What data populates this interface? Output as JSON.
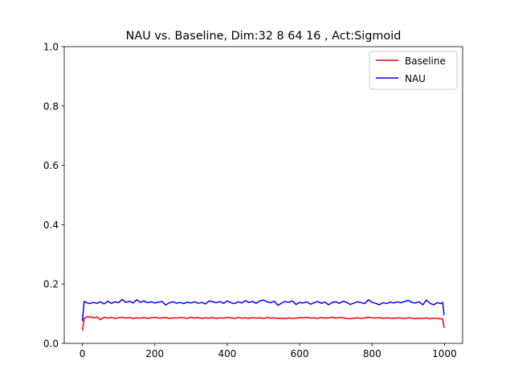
{
  "chart_data": {
    "type": "line",
    "title": "NAU vs. Baseline, Dim:32 8 64 16 , Act:Sigmoid",
    "xlabel": "",
    "ylabel": "",
    "xlim": [
      -50,
      1050
    ],
    "ylim": [
      0.0,
      1.0
    ],
    "xticks": [
      0,
      200,
      400,
      600,
      800,
      1000
    ],
    "xtick_labels": [
      "0",
      "200",
      "400",
      "600",
      "800",
      "1000"
    ],
    "yticks": [
      0.0,
      0.2,
      0.4,
      0.6,
      0.8,
      1.0
    ],
    "ytick_labels": [
      "0.0",
      "0.2",
      "0.4",
      "0.6",
      "0.8",
      "1.0"
    ],
    "grid": false,
    "legend_position": "top-right",
    "x": [
      0,
      5,
      10,
      20,
      30,
      40,
      50,
      60,
      70,
      80,
      90,
      100,
      110,
      120,
      130,
      140,
      150,
      160,
      170,
      180,
      190,
      200,
      210,
      220,
      230,
      240,
      250,
      260,
      270,
      280,
      290,
      300,
      310,
      320,
      330,
      340,
      350,
      360,
      370,
      380,
      390,
      400,
      410,
      420,
      430,
      440,
      450,
      460,
      470,
      480,
      490,
      500,
      510,
      520,
      530,
      540,
      550,
      560,
      570,
      580,
      590,
      600,
      610,
      620,
      630,
      640,
      650,
      660,
      670,
      680,
      690,
      700,
      710,
      720,
      730,
      740,
      750,
      760,
      770,
      780,
      790,
      800,
      810,
      820,
      830,
      840,
      850,
      860,
      870,
      880,
      890,
      900,
      910,
      920,
      930,
      940,
      950,
      960,
      970,
      980,
      990,
      995,
      999
    ],
    "series": [
      {
        "name": "Baseline",
        "color": "#ff0000",
        "values": [
          0.044,
          0.085,
          0.088,
          0.09,
          0.086,
          0.089,
          0.08,
          0.088,
          0.085,
          0.087,
          0.084,
          0.086,
          0.088,
          0.085,
          0.087,
          0.084,
          0.086,
          0.085,
          0.087,
          0.084,
          0.086,
          0.088,
          0.085,
          0.086,
          0.087,
          0.084,
          0.086,
          0.085,
          0.087,
          0.086,
          0.084,
          0.088,
          0.085,
          0.087,
          0.084,
          0.086,
          0.085,
          0.087,
          0.084,
          0.086,
          0.085,
          0.087,
          0.086,
          0.084,
          0.087,
          0.085,
          0.086,
          0.084,
          0.087,
          0.085,
          0.086,
          0.084,
          0.087,
          0.085,
          0.086,
          0.084,
          0.085,
          0.083,
          0.086,
          0.084,
          0.085,
          0.087,
          0.086,
          0.088,
          0.085,
          0.086,
          0.084,
          0.087,
          0.085,
          0.086,
          0.088,
          0.085,
          0.087,
          0.086,
          0.084,
          0.083,
          0.085,
          0.086,
          0.084,
          0.086,
          0.088,
          0.086,
          0.085,
          0.087,
          0.084,
          0.086,
          0.085,
          0.084,
          0.086,
          0.085,
          0.084,
          0.086,
          0.085,
          0.083,
          0.085,
          0.084,
          0.086,
          0.083,
          0.085,
          0.084,
          0.083,
          0.082,
          0.052
        ]
      },
      {
        "name": "NAU",
        "color": "#0000ff",
        "values": [
          0.075,
          0.142,
          0.138,
          0.134,
          0.138,
          0.135,
          0.14,
          0.133,
          0.142,
          0.135,
          0.14,
          0.137,
          0.148,
          0.138,
          0.142,
          0.136,
          0.147,
          0.138,
          0.143,
          0.137,
          0.14,
          0.136,
          0.139,
          0.141,
          0.129,
          0.137,
          0.14,
          0.135,
          0.138,
          0.134,
          0.139,
          0.136,
          0.14,
          0.135,
          0.138,
          0.133,
          0.143,
          0.14,
          0.137,
          0.141,
          0.135,
          0.143,
          0.137,
          0.134,
          0.14,
          0.136,
          0.144,
          0.138,
          0.141,
          0.135,
          0.143,
          0.146,
          0.14,
          0.137,
          0.142,
          0.128,
          0.136,
          0.141,
          0.138,
          0.143,
          0.131,
          0.138,
          0.136,
          0.14,
          0.132,
          0.137,
          0.141,
          0.135,
          0.139,
          0.13,
          0.138,
          0.14,
          0.135,
          0.142,
          0.138,
          0.131,
          0.136,
          0.14,
          0.137,
          0.134,
          0.147,
          0.138,
          0.135,
          0.13,
          0.137,
          0.134,
          0.139,
          0.136,
          0.14,
          0.137,
          0.141,
          0.145,
          0.138,
          0.136,
          0.14,
          0.13,
          0.146,
          0.135,
          0.13,
          0.137,
          0.134,
          0.138,
          0.095
        ]
      }
    ]
  }
}
